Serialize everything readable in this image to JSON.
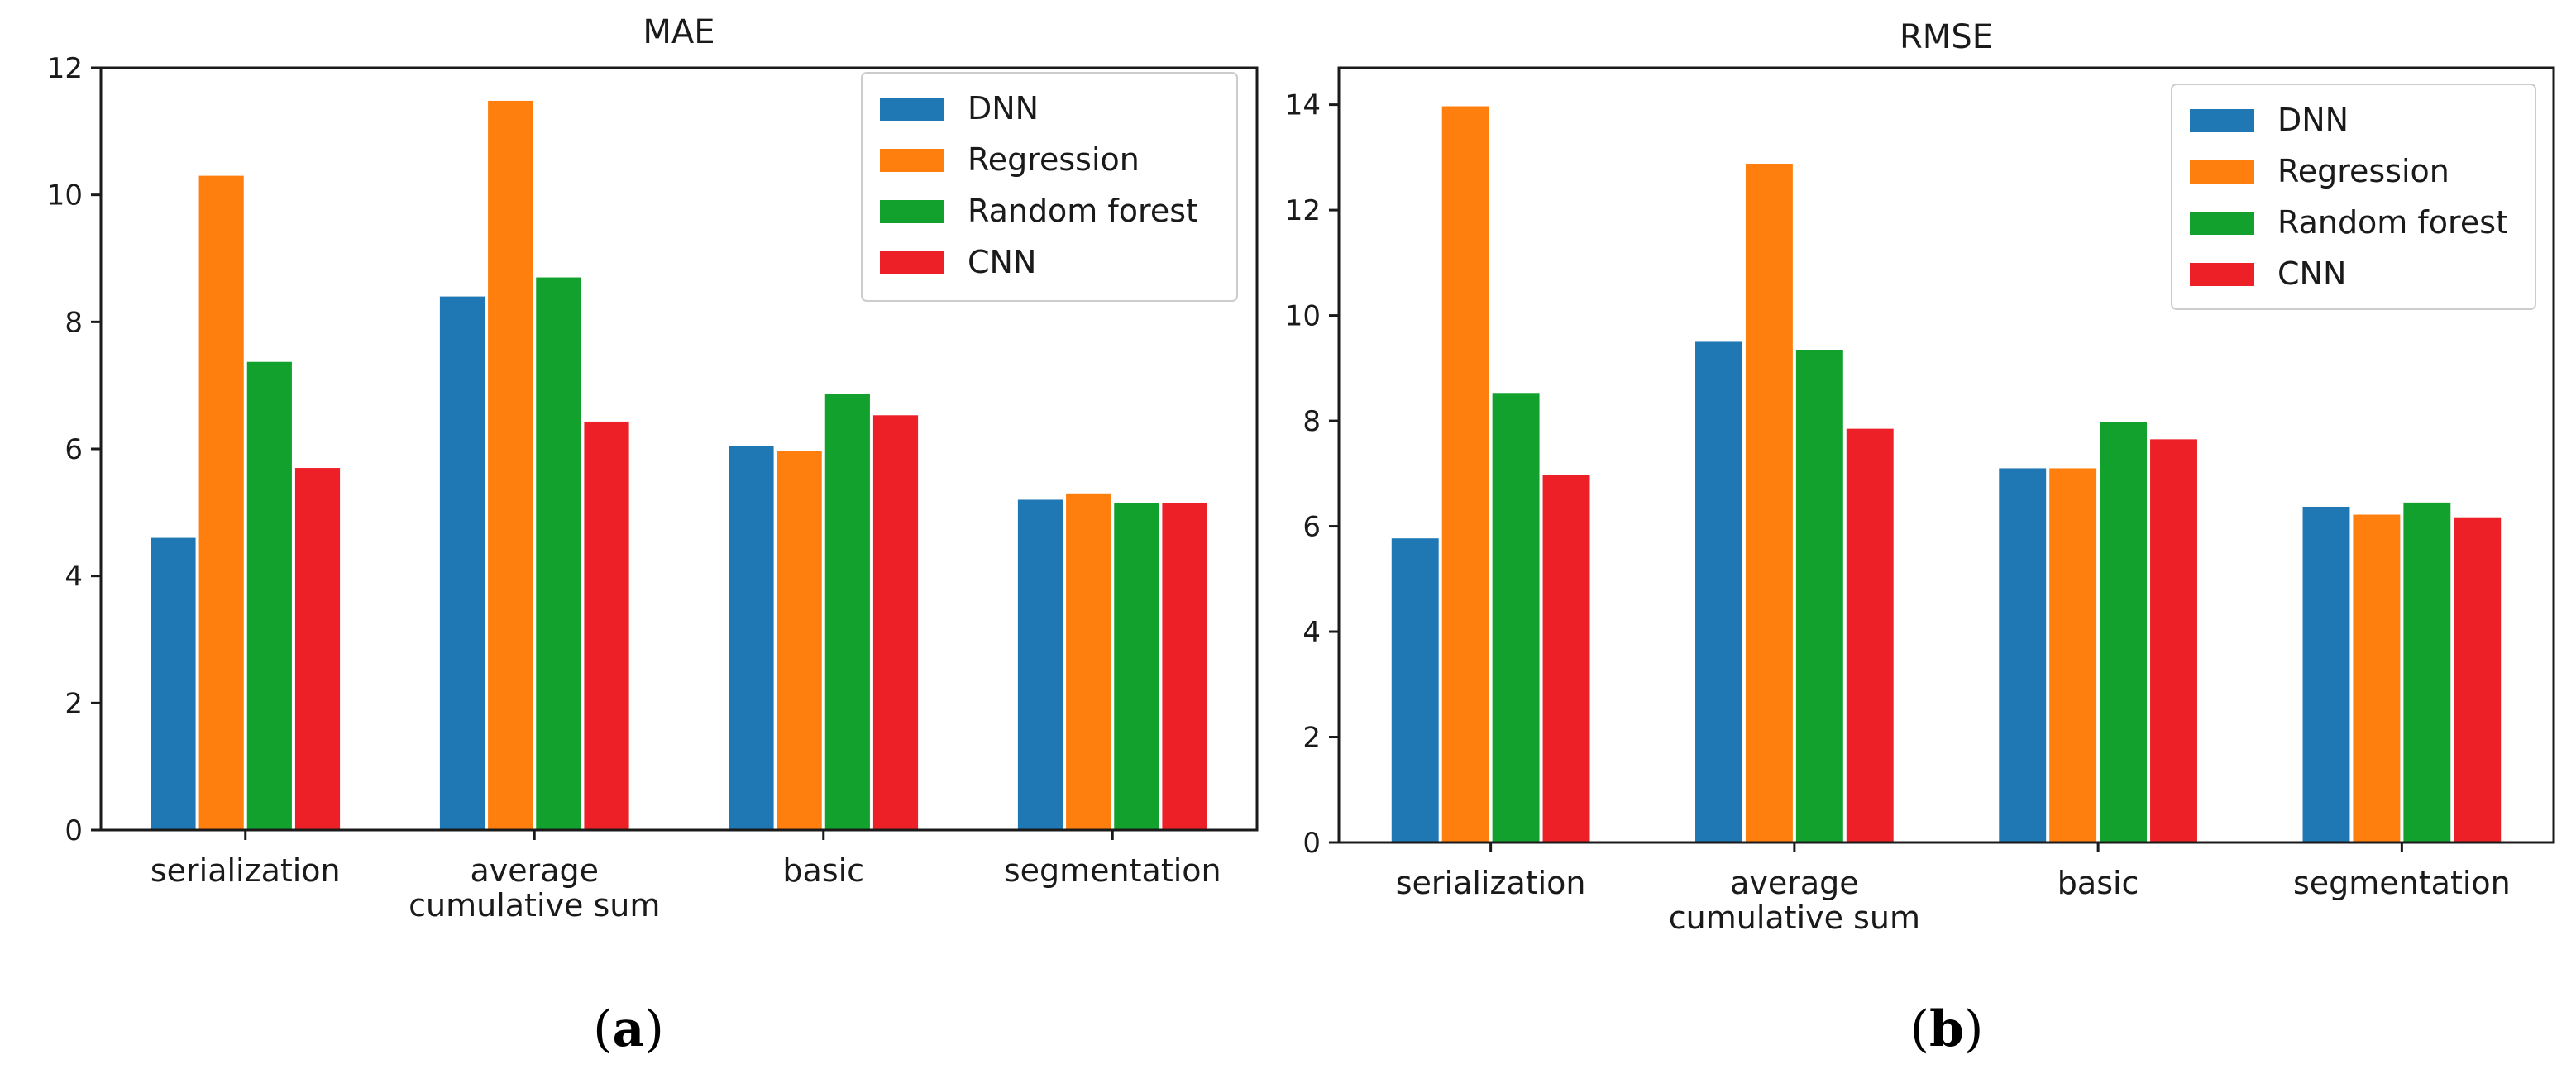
{
  "chart_data": [
    {
      "type": "bar",
      "panel_label": "a",
      "title": "MAE",
      "xlabel": "",
      "ylabel": "",
      "ylim": [
        0,
        12
      ],
      "yticks": [
        0,
        2,
        4,
        6,
        8,
        10,
        12
      ],
      "tick_labels": [
        "0",
        "2",
        "4",
        "6",
        "8",
        "10",
        "12"
      ],
      "legend_position": "top-right",
      "categories": [
        [
          "serialization"
        ],
        [
          "average",
          "cumulative sum"
        ],
        [
          "basic"
        ],
        [
          "segmentation"
        ]
      ],
      "series": [
        {
          "name": "DNN",
          "color": "#1f77b4",
          "values": [
            4.6,
            8.4,
            6.05,
            5.2
          ]
        },
        {
          "name": "Regression",
          "color": "#ff7f0e",
          "values": [
            10.3,
            11.48,
            5.97,
            5.3
          ]
        },
        {
          "name": "Random forest",
          "color": "#11a12c",
          "values": [
            7.37,
            8.7,
            6.87,
            5.15
          ]
        },
        {
          "name": "CNN",
          "color": "#ee2027",
          "values": [
            5.7,
            6.43,
            6.53,
            5.15
          ]
        }
      ]
    },
    {
      "type": "bar",
      "panel_label": "b",
      "title": "RMSE",
      "xlabel": "",
      "ylabel": "",
      "ylim": [
        0,
        14.7
      ],
      "yticks": [
        0,
        2,
        4,
        6,
        8,
        10,
        12,
        14
      ],
      "tick_labels": [
        "0",
        "2",
        "4",
        "6",
        "8",
        "10",
        "12",
        "14"
      ],
      "legend_position": "top-right",
      "categories": [
        [
          "serialization"
        ],
        [
          "average",
          "cumulative sum"
        ],
        [
          "basic"
        ],
        [
          "segmentation"
        ]
      ],
      "series": [
        {
          "name": "DNN",
          "color": "#1f77b4",
          "values": [
            5.77,
            9.5,
            7.1,
            6.37
          ]
        },
        {
          "name": "Regression",
          "color": "#ff7f0e",
          "values": [
            13.97,
            12.88,
            7.1,
            6.22
          ]
        },
        {
          "name": "Random forest",
          "color": "#11a12c",
          "values": [
            8.53,
            9.35,
            7.97,
            6.45
          ]
        },
        {
          "name": "CNN",
          "color": "#ee2027",
          "values": [
            6.97,
            7.85,
            7.65,
            6.17
          ]
        }
      ]
    }
  ]
}
